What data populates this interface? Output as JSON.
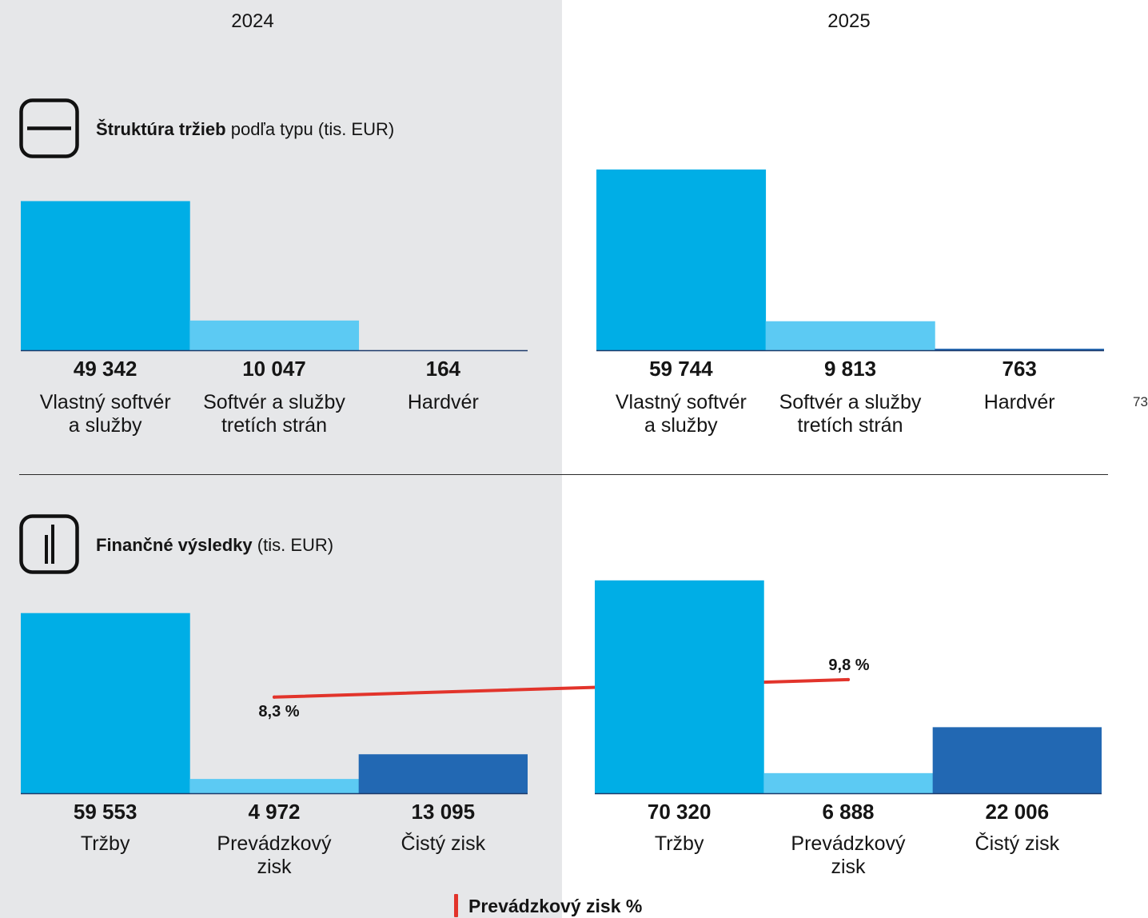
{
  "years": [
    "2024",
    "2025"
  ],
  "page_number": "73",
  "icons": {
    "revenue_structure": "minus-square-icon",
    "financial_results": "bar-chart-icon"
  },
  "colors": {
    "panel_left_background": "#e6e7e9",
    "panel_right_background": "#ffffff",
    "bar_series_1": "#00aee6",
    "bar_series_2": "#5ccaf3",
    "bar_series_3": "#2268b3",
    "baseline": "#1c3a6b",
    "line": "#e2342b",
    "text": "#151515"
  },
  "chart_data": [
    {
      "type": "bar",
      "title": {
        "bold": "Štruktúra tržieb",
        "rest": "podľa typu (tis. EUR)"
      },
      "categories": [
        "Vlastný softvér\na služby",
        "Softvér a služby\ntretích strán",
        "Hardvér"
      ],
      "series": [
        {
          "values": [
            49342,
            10047,
            164
          ],
          "value_labels": [
            "49 342",
            "10 047",
            "164"
          ]
        },
        {
          "values": [
            59744,
            9813,
            763
          ],
          "value_labels": [
            "59 744",
            "9 813",
            "763"
          ]
        }
      ],
      "grid": false,
      "axes_shown": false
    },
    {
      "type": "bar",
      "title": {
        "bold": "Finančné výsledky",
        "rest": "(tis. EUR)"
      },
      "categories": [
        "Tržby",
        "Prevádzkový\nzisk",
        "Čistý zisk"
      ],
      "series": [
        {
          "values": [
            59553,
            4972,
            13095
          ],
          "value_labels": [
            "59 553",
            "4 972",
            "13 095"
          ]
        },
        {
          "values": [
            70320,
            6888,
            22006
          ],
          "value_labels": [
            "70 320",
            "6 888",
            "22 006"
          ]
        }
      ],
      "line_series": {
        "name": "Prevádzkový zisk %",
        "values": [
          8.3,
          9.8
        ],
        "value_labels": [
          "8,3 %",
          "9,8 %"
        ]
      },
      "legend_placement": "bottom-center",
      "grid": false,
      "axes_shown": false
    }
  ]
}
